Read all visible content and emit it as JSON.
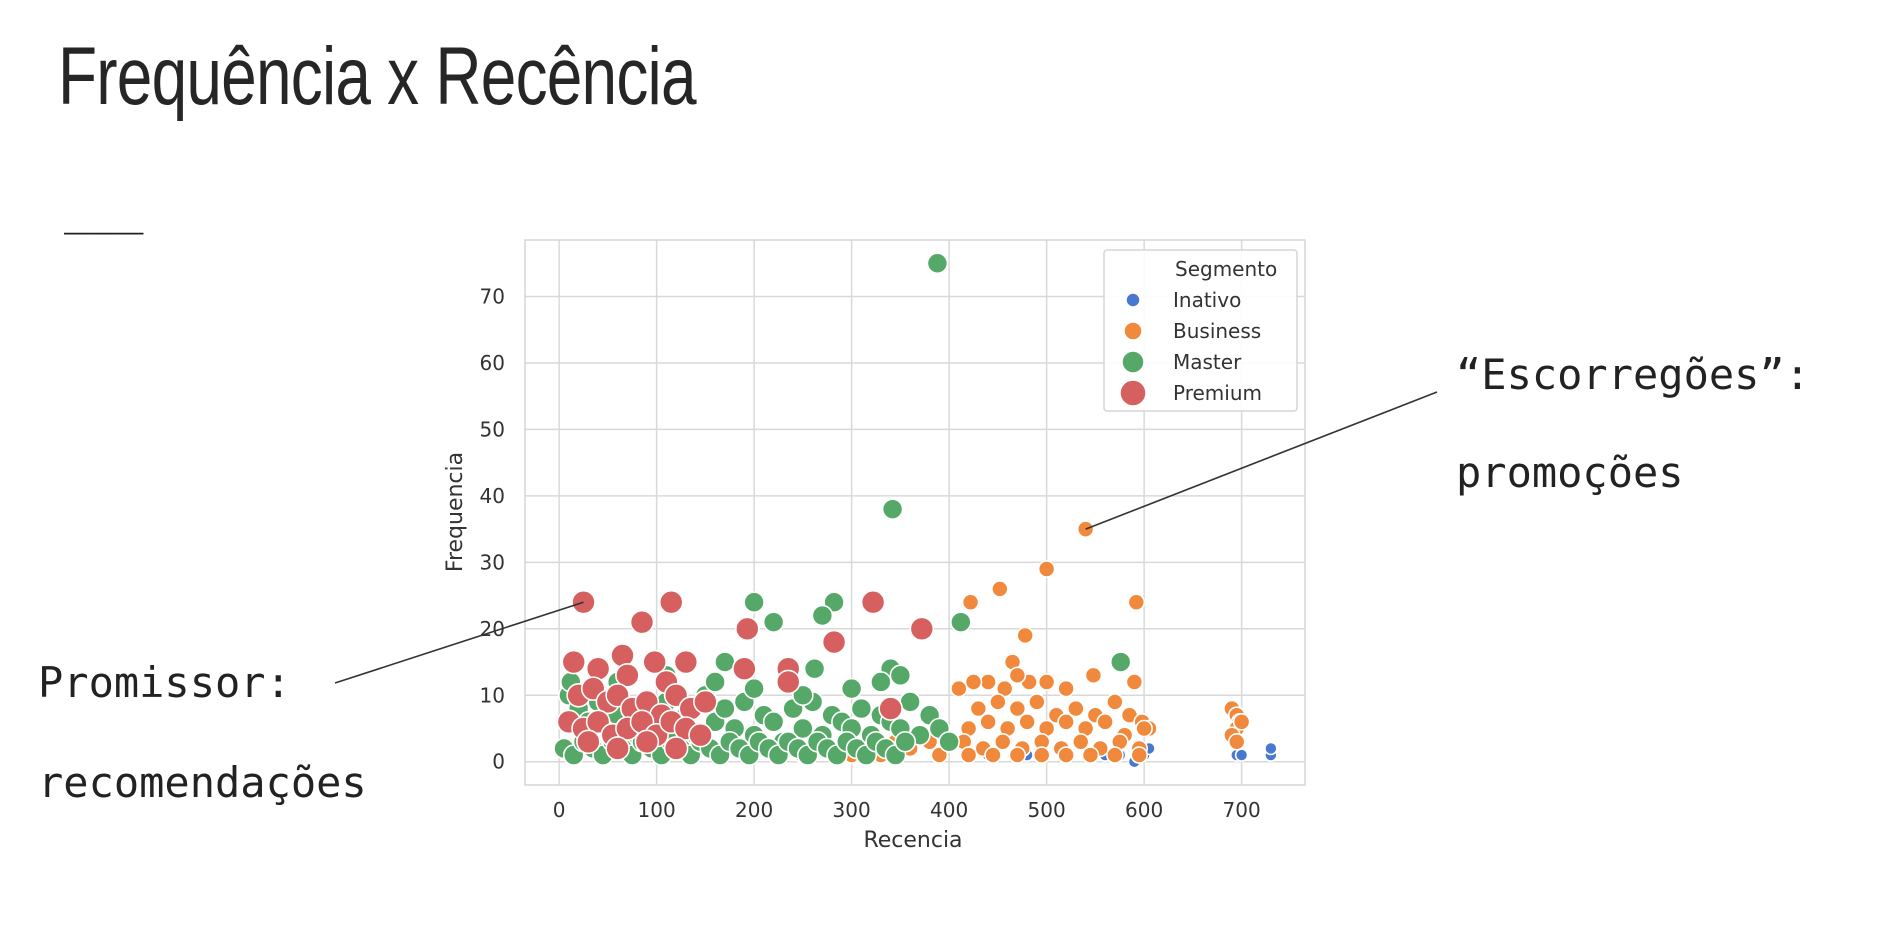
{
  "slide": {
    "title": "Frequência x Recência",
    "rule": "___",
    "annotations": [
      {
        "line1": "“Escorregões”:",
        "line2": "promoções",
        "target": {
          "x": 540,
          "y": 35
        }
      },
      {
        "line1": "Promissor:",
        "line2": "recomendações",
        "target": {
          "x": 25,
          "y": 24
        }
      }
    ]
  },
  "chart_data": {
    "type": "scatter",
    "xlabel": "Recencia",
    "ylabel": "Frequencia",
    "xlim": [
      -35,
      765
    ],
    "ylim": [
      -3.5,
      78.5
    ],
    "xticks": [
      0,
      100,
      200,
      300,
      400,
      500,
      600,
      700
    ],
    "yticks": [
      0,
      10,
      20,
      30,
      40,
      50,
      60,
      70
    ],
    "grid": true,
    "legend": {
      "title": "Segmento",
      "position": "top-right"
    },
    "series": [
      {
        "name": "Inativo",
        "color": "#4878cf",
        "marker_size": "small",
        "points": [
          [
            420,
            1
          ],
          [
            440,
            1
          ],
          [
            480,
            1
          ],
          [
            520,
            1
          ],
          [
            560,
            1
          ],
          [
            575,
            1
          ],
          [
            590,
            0
          ],
          [
            600,
            1
          ],
          [
            605,
            2
          ],
          [
            695,
            1
          ],
          [
            700,
            1
          ],
          [
            730,
            1
          ],
          [
            730,
            2
          ]
        ]
      },
      {
        "name": "Business",
        "color": "#f0893b",
        "marker_size": "medium",
        "points": [
          [
            540,
            35
          ],
          [
            500,
            29
          ],
          [
            452,
            26
          ],
          [
            422,
            24
          ],
          [
            592,
            24
          ],
          [
            478,
            19
          ],
          [
            465,
            15
          ],
          [
            590,
            12
          ],
          [
            548,
            13
          ],
          [
            520,
            11
          ],
          [
            500,
            12
          ],
          [
            482,
            12
          ],
          [
            470,
            13
          ],
          [
            457,
            11
          ],
          [
            440,
            12
          ],
          [
            425,
            12
          ],
          [
            410,
            11
          ],
          [
            430,
            8
          ],
          [
            450,
            9
          ],
          [
            470,
            8
          ],
          [
            490,
            9
          ],
          [
            510,
            7
          ],
          [
            530,
            8
          ],
          [
            550,
            7
          ],
          [
            570,
            9
          ],
          [
            585,
            7
          ],
          [
            598,
            6
          ],
          [
            605,
            5
          ],
          [
            420,
            5
          ],
          [
            440,
            6
          ],
          [
            460,
            5
          ],
          [
            480,
            6
          ],
          [
            500,
            5
          ],
          [
            520,
            6
          ],
          [
            540,
            5
          ],
          [
            560,
            6
          ],
          [
            580,
            4
          ],
          [
            600,
            5
          ],
          [
            415,
            3
          ],
          [
            435,
            2
          ],
          [
            455,
            3
          ],
          [
            475,
            2
          ],
          [
            495,
            3
          ],
          [
            515,
            2
          ],
          [
            535,
            3
          ],
          [
            555,
            2
          ],
          [
            575,
            3
          ],
          [
            595,
            2
          ],
          [
            420,
            1
          ],
          [
            445,
            1
          ],
          [
            470,
            1
          ],
          [
            495,
            1
          ],
          [
            520,
            1
          ],
          [
            545,
            1
          ],
          [
            570,
            1
          ],
          [
            595,
            1
          ],
          [
            360,
            2
          ],
          [
            380,
            3
          ],
          [
            390,
            1
          ],
          [
            300,
            1
          ],
          [
            280,
            2
          ],
          [
            250,
            1
          ],
          [
            230,
            2
          ],
          [
            330,
            1
          ],
          [
            345,
            3
          ],
          [
            690,
            8
          ],
          [
            695,
            7
          ],
          [
            698,
            6
          ],
          [
            695,
            5
          ],
          [
            690,
            4
          ],
          [
            695,
            3
          ],
          [
            700,
            6
          ]
        ]
      },
      {
        "name": "Master",
        "color": "#55a868",
        "marker_size": "large",
        "points": [
          [
            388,
            75
          ],
          [
            342,
            38
          ],
          [
            200,
            24
          ],
          [
            282,
            24
          ],
          [
            270,
            22
          ],
          [
            412,
            21
          ],
          [
            220,
            21
          ],
          [
            576,
            15
          ],
          [
            170,
            15
          ],
          [
            340,
            14
          ],
          [
            262,
            14
          ],
          [
            10,
            10
          ],
          [
            20,
            8
          ],
          [
            30,
            6
          ],
          [
            40,
            9
          ],
          [
            50,
            5
          ],
          [
            60,
            7
          ],
          [
            70,
            4
          ],
          [
            80,
            8
          ],
          [
            90,
            3
          ],
          [
            100,
            6
          ],
          [
            110,
            9
          ],
          [
            120,
            5
          ],
          [
            130,
            7
          ],
          [
            140,
            4
          ],
          [
            150,
            10
          ],
          [
            160,
            6
          ],
          [
            170,
            8
          ],
          [
            180,
            5
          ],
          [
            190,
            9
          ],
          [
            200,
            4
          ],
          [
            210,
            7
          ],
          [
            220,
            6
          ],
          [
            230,
            3
          ],
          [
            240,
            8
          ],
          [
            250,
            5
          ],
          [
            260,
            9
          ],
          [
            270,
            4
          ],
          [
            280,
            7
          ],
          [
            290,
            6
          ],
          [
            300,
            5
          ],
          [
            310,
            8
          ],
          [
            320,
            4
          ],
          [
            330,
            7
          ],
          [
            340,
            6
          ],
          [
            350,
            5
          ],
          [
            360,
            9
          ],
          [
            370,
            4
          ],
          [
            380,
            7
          ],
          [
            390,
            5
          ],
          [
            400,
            3
          ],
          [
            5,
            2
          ],
          [
            15,
            1
          ],
          [
            25,
            3
          ],
          [
            35,
            2
          ],
          [
            45,
            1
          ],
          [
            55,
            3
          ],
          [
            65,
            2
          ],
          [
            75,
            1
          ],
          [
            85,
            3
          ],
          [
            95,
            2
          ],
          [
            105,
            1
          ],
          [
            115,
            3
          ],
          [
            125,
            2
          ],
          [
            135,
            1
          ],
          [
            145,
            3
          ],
          [
            155,
            2
          ],
          [
            165,
            1
          ],
          [
            175,
            3
          ],
          [
            185,
            2
          ],
          [
            195,
            1
          ],
          [
            205,
            3
          ],
          [
            215,
            2
          ],
          [
            225,
            1
          ],
          [
            235,
            3
          ],
          [
            245,
            2
          ],
          [
            255,
            1
          ],
          [
            265,
            3
          ],
          [
            275,
            2
          ],
          [
            285,
            1
          ],
          [
            295,
            3
          ],
          [
            305,
            2
          ],
          [
            315,
            1
          ],
          [
            325,
            3
          ],
          [
            335,
            2
          ],
          [
            345,
            1
          ],
          [
            355,
            3
          ],
          [
            12,
            12
          ],
          [
            60,
            12
          ],
          [
            110,
            13
          ],
          [
            160,
            12
          ],
          [
            200,
            11
          ],
          [
            250,
            10
          ],
          [
            300,
            11
          ],
          [
            330,
            12
          ],
          [
            350,
            13
          ]
        ]
      },
      {
        "name": "Premium",
        "color": "#d65f5f",
        "marker_size": "xlarge",
        "points": [
          [
            25,
            24
          ],
          [
            115,
            24
          ],
          [
            322,
            24
          ],
          [
            85,
            21
          ],
          [
            372,
            20
          ],
          [
            193,
            20
          ],
          [
            282,
            18
          ],
          [
            15,
            15
          ],
          [
            65,
            16
          ],
          [
            98,
            15
          ],
          [
            130,
            15
          ],
          [
            190,
            14
          ],
          [
            235,
            14
          ],
          [
            40,
            14
          ],
          [
            70,
            13
          ],
          [
            110,
            12
          ],
          [
            235,
            12
          ],
          [
            20,
            10
          ],
          [
            35,
            11
          ],
          [
            50,
            9
          ],
          [
            60,
            10
          ],
          [
            75,
            8
          ],
          [
            90,
            9
          ],
          [
            105,
            7
          ],
          [
            120,
            10
          ],
          [
            135,
            8
          ],
          [
            150,
            9
          ],
          [
            10,
            6
          ],
          [
            25,
            5
          ],
          [
            40,
            6
          ],
          [
            55,
            4
          ],
          [
            70,
            5
          ],
          [
            85,
            6
          ],
          [
            100,
            4
          ],
          [
            115,
            6
          ],
          [
            130,
            5
          ],
          [
            145,
            4
          ],
          [
            30,
            3
          ],
          [
            60,
            2
          ],
          [
            90,
            3
          ],
          [
            120,
            2
          ],
          [
            340,
            8
          ]
        ]
      }
    ]
  }
}
